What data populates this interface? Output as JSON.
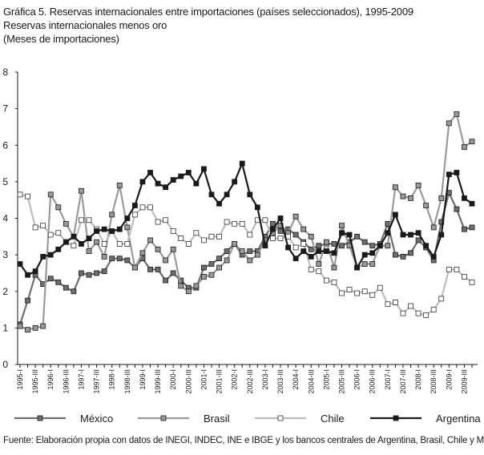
{
  "header": {
    "title": "Gráfica 5. Reservas internacionales entre importaciones (países seleccionados), 1995-2009",
    "subtitle1": "Reservas internacionales menos oro",
    "subtitle2": "(Meses de importaciones)"
  },
  "footer": {
    "source": "Fuente: Elaboración propia con datos de INEGI, INDEC, INE e IBGE y los bancos centrales de Argentina, Brasil, Chile y México."
  },
  "chart_data": {
    "type": "line",
    "ylim": [
      0,
      8
    ],
    "yticks": [
      "0",
      "1",
      "2",
      "3",
      "4",
      "5",
      "6",
      "7",
      "8"
    ],
    "x": [
      "1995-I",
      "1995-II",
      "1995-III",
      "1995-IV",
      "1996-I",
      "1996-II",
      "1996-III",
      "1996-IV",
      "1997-I",
      "1997-II",
      "1997-III",
      "1997-IV",
      "1998-I",
      "1998-II",
      "1998-III",
      "1998-IV",
      "1999-I",
      "1999-II",
      "1999-III",
      "1999-IV",
      "2000-I",
      "2000-II",
      "2000-III",
      "2000-IV",
      "2001-I",
      "2001-II",
      "2001-III",
      "2001-IV",
      "2002-I",
      "2002-II",
      "2002-III",
      "2002-IV",
      "2003-I",
      "2003-II",
      "2003-III",
      "2003-IV",
      "2004-I",
      "2004-II",
      "2004-III",
      "2004-IV",
      "2005-I",
      "2005-II",
      "2005-III",
      "2005-IV",
      "2006-I",
      "2006-II",
      "2006-III",
      "2006-IV",
      "2007-I",
      "2007-II",
      "2007-III",
      "2007-IV",
      "2008-I",
      "2008-II",
      "2008-III",
      "2008-IV",
      "2009-I",
      "2009-II",
      "2009-III",
      "2009-IV"
    ],
    "xticklabels": [
      "1995-I",
      "1995-III",
      "1996-I",
      "1996-III",
      "1997-I",
      "1997-III",
      "1998-I",
      "1998-III",
      "1999-I",
      "1999-III",
      "2000-I",
      "2000-III",
      "2001-I",
      "2001-III",
      "2002-I",
      "2002-III",
      "2003-I",
      "2003-III",
      "2004-I",
      "2004-III",
      "2005-I",
      "2005-III",
      "2006-I",
      "2006-III",
      "2007-I",
      "2007-III",
      "2008-I",
      "2008-III",
      "2009-I",
      "2009-III"
    ],
    "legend_position": "bottom",
    "series": [
      {
        "name": "México",
        "color": "#6e6e6e",
        "marker_fill": "#6e6e6e",
        "values": [
          1.1,
          1.75,
          2.45,
          2.2,
          2.35,
          2.25,
          2.1,
          2.0,
          2.5,
          2.45,
          2.5,
          2.55,
          2.9,
          2.9,
          2.85,
          2.65,
          2.9,
          2.6,
          2.6,
          2.3,
          2.5,
          2.3,
          2.1,
          2.1,
          2.65,
          2.75,
          2.9,
          3.1,
          3.3,
          3.0,
          3.1,
          3.1,
          3.5,
          3.85,
          3.65,
          3.7,
          3.55,
          3.35,
          3.15,
          3.25,
          3.3,
          3.3,
          3.25,
          3.35,
          3.5,
          3.35,
          3.25,
          3.3,
          3.85,
          3.0,
          2.95,
          3.05,
          3.4,
          3.2,
          2.85,
          3.9,
          4.7,
          4.25,
          3.7,
          3.75
        ]
      },
      {
        "name": "Brasil",
        "color": "#9a9a9a",
        "marker_fill": "#9a9a9a",
        "values": [
          1.05,
          0.95,
          1.0,
          1.05,
          4.65,
          4.3,
          3.85,
          3.5,
          4.75,
          3.1,
          3.35,
          2.95,
          4.1,
          4.9,
          3.75,
          2.65,
          3.05,
          3.4,
          3.15,
          2.85,
          3.15,
          2.15,
          2.0,
          2.15,
          2.4,
          2.45,
          2.65,
          2.85,
          3.3,
          3.1,
          2.85,
          3.0,
          3.4,
          3.6,
          3.8,
          3.6,
          4.05,
          3.7,
          3.5,
          2.75,
          3.35,
          2.65,
          3.8,
          3.25,
          2.65,
          2.75,
          2.75,
          3.25,
          3.25,
          4.85,
          4.6,
          4.55,
          4.9,
          4.35,
          3.75,
          4.55,
          6.6,
          6.85,
          5.95,
          6.1
        ]
      },
      {
        "name": "Chile",
        "color": "#bdbdbd",
        "marker_fill": "#ffffff",
        "values": [
          4.65,
          4.6,
          3.75,
          3.8,
          3.55,
          3.6,
          3.35,
          3.25,
          3.95,
          3.95,
          3.7,
          3.3,
          3.65,
          3.3,
          3.3,
          4.1,
          4.3,
          4.3,
          3.9,
          3.95,
          3.65,
          3.45,
          3.3,
          3.6,
          3.4,
          3.5,
          3.5,
          3.9,
          3.85,
          3.85,
          3.55,
          3.95,
          3.95,
          3.45,
          3.45,
          3.5,
          3.2,
          3.3,
          2.6,
          2.55,
          2.3,
          2.25,
          1.95,
          2.05,
          1.95,
          2.0,
          1.9,
          2.1,
          1.65,
          1.7,
          1.4,
          1.6,
          1.4,
          1.35,
          1.5,
          1.8,
          2.6,
          2.6,
          2.4,
          2.25
        ]
      },
      {
        "name": "Argentina",
        "color": "#1a1a1a",
        "marker_fill": "#1a1a1a",
        "values": [
          2.75,
          2.45,
          2.55,
          2.95,
          3.0,
          3.15,
          3.35,
          3.5,
          3.3,
          3.45,
          3.65,
          3.7,
          3.65,
          3.7,
          4.0,
          4.35,
          5.0,
          5.25,
          4.95,
          4.85,
          5.05,
          5.15,
          5.25,
          4.95,
          5.35,
          4.65,
          4.4,
          4.65,
          5.0,
          5.5,
          4.65,
          4.3,
          3.25,
          3.7,
          4.0,
          3.2,
          2.9,
          3.1,
          2.95,
          3.1,
          3.1,
          3.05,
          3.6,
          3.55,
          2.65,
          3.0,
          3.05,
          3.25,
          3.6,
          4.1,
          3.55,
          3.55,
          3.6,
          3.25,
          2.95,
          3.55,
          5.2,
          5.25,
          4.55,
          4.4
        ]
      }
    ]
  }
}
